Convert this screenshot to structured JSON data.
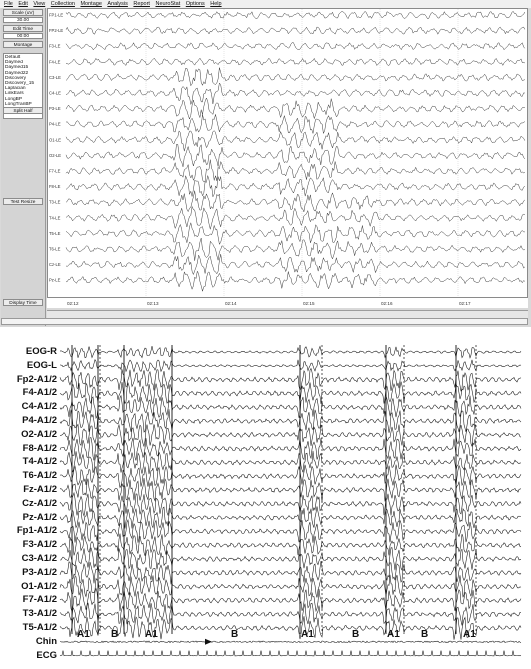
{
  "menu": [
    "File",
    "Edit",
    "View",
    "Collection",
    "Montage",
    "Analysis",
    "Report",
    "NeuroStat",
    "Options",
    "Help"
  ],
  "left_panel": {
    "scale_label": "Scale (uV)",
    "scale_value": "30.00",
    "edit_time_label": "Edit Time",
    "edit_time_value": "00:00",
    "montage_label": "Montage",
    "montages": [
      "Default",
      "Daymed",
      "Daymed15",
      "Daymed22",
      "Discovery",
      "Discovery_15",
      "Laplacian",
      "LinkEars",
      "LongBP",
      "LongTranBP"
    ],
    "split_half_label": "Split Half",
    "test_resize_label": "Test Resize",
    "display_time_label": "Display Time"
  },
  "top_channels": [
    "FP1-LE",
    "FP2-LE",
    "F3-LE",
    "F4-LE",
    "C3-LE",
    "C4-LE",
    "P3-LE",
    "P4-LE",
    "O1-LE",
    "O2-LE",
    "F7-LE",
    "F8-LE",
    "T3-LE",
    "T4-LE",
    "T5-LE",
    "T6-LE",
    "Cz-LE",
    "Pz-LE"
  ],
  "time_ticks": [
    "02:12",
    "02:13",
    "02:14",
    "02:15",
    "02:16",
    "02:17"
  ],
  "bottom_channels": [
    "EOG-R",
    "EOG-L",
    "Fp2-A1/2",
    "F4-A1/2",
    "C4-A1/2",
    "P4-A1/2",
    "O2-A1/2",
    "F8-A1/2",
    "T4-A1/2",
    "T6-A1/2",
    "Fz-A1/2",
    "Cz-A1/2",
    "Pz-A1/2",
    "Fp1-A1/2",
    "F3-A1/2",
    "C3-A1/2",
    "P3-A1/2",
    "O1-A1/2",
    "F7-A1/2",
    "T3-A1/2",
    "T5-A1/2",
    "Chin",
    "ECG"
  ],
  "segment_labels": [
    "A1",
    "B",
    "A1",
    "B",
    "A1",
    "B",
    "A1",
    "B",
    "A1"
  ],
  "colors": {
    "trace": "#222222",
    "panel_bg": "#d4d4d4",
    "window_bg": "#d9d9d9"
  }
}
